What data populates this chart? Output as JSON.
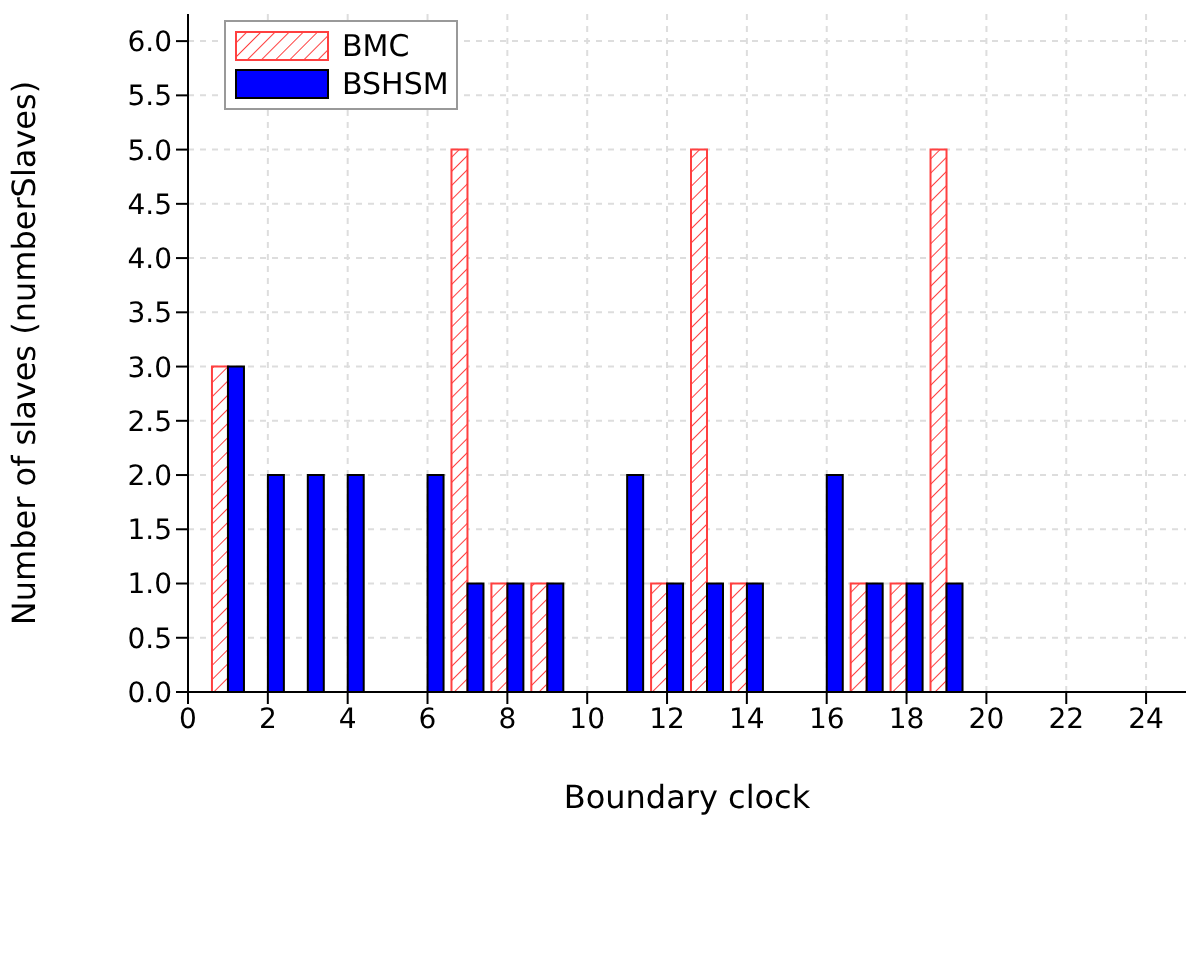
{
  "chart_data": {
    "type": "bar",
    "xlabel": "Boundary clock",
    "ylabel": "Number of slaves (numberSlaves)",
    "x": [
      1,
      2,
      3,
      4,
      6,
      7,
      8,
      9,
      11,
      12,
      13,
      14,
      16,
      17,
      18,
      19
    ],
    "series": [
      {
        "name": "BMC",
        "color": "#ff4040",
        "values": [
          3,
          null,
          null,
          null,
          null,
          5,
          1,
          1,
          null,
          1,
          5,
          1,
          null,
          1,
          1,
          5
        ]
      },
      {
        "name": "BSHSM",
        "color": "#0000ff",
        "values": [
          3,
          2,
          2,
          2,
          2,
          1,
          1,
          1,
          2,
          1,
          1,
          1,
          2,
          1,
          1,
          1
        ]
      }
    ],
    "xlim": [
      0,
      25
    ],
    "xticks": [
      0,
      2,
      4,
      6,
      8,
      10,
      12,
      14,
      16,
      18,
      20,
      22,
      24
    ],
    "ylim": [
      0,
      6.25
    ],
    "yticks": [
      {
        "value": 0,
        "label": "0.0"
      },
      {
        "value": 0.5,
        "label": "0.5"
      },
      {
        "value": 1,
        "label": "1.0"
      },
      {
        "value": 1.5,
        "label": "1.5"
      },
      {
        "value": 2,
        "label": "2.0"
      },
      {
        "value": 2.5,
        "label": "2.5"
      },
      {
        "value": 3,
        "label": "3.0"
      },
      {
        "value": 3.5,
        "label": "3.5"
      },
      {
        "value": 4,
        "label": "4.0"
      },
      {
        "value": 4.5,
        "label": "4.5"
      },
      {
        "value": 5,
        "label": "5.0"
      },
      {
        "value": 5.5,
        "label": "5.5"
      },
      {
        "value": 6,
        "label": "6.0"
      }
    ],
    "grid": true,
    "legend": "top left"
  }
}
